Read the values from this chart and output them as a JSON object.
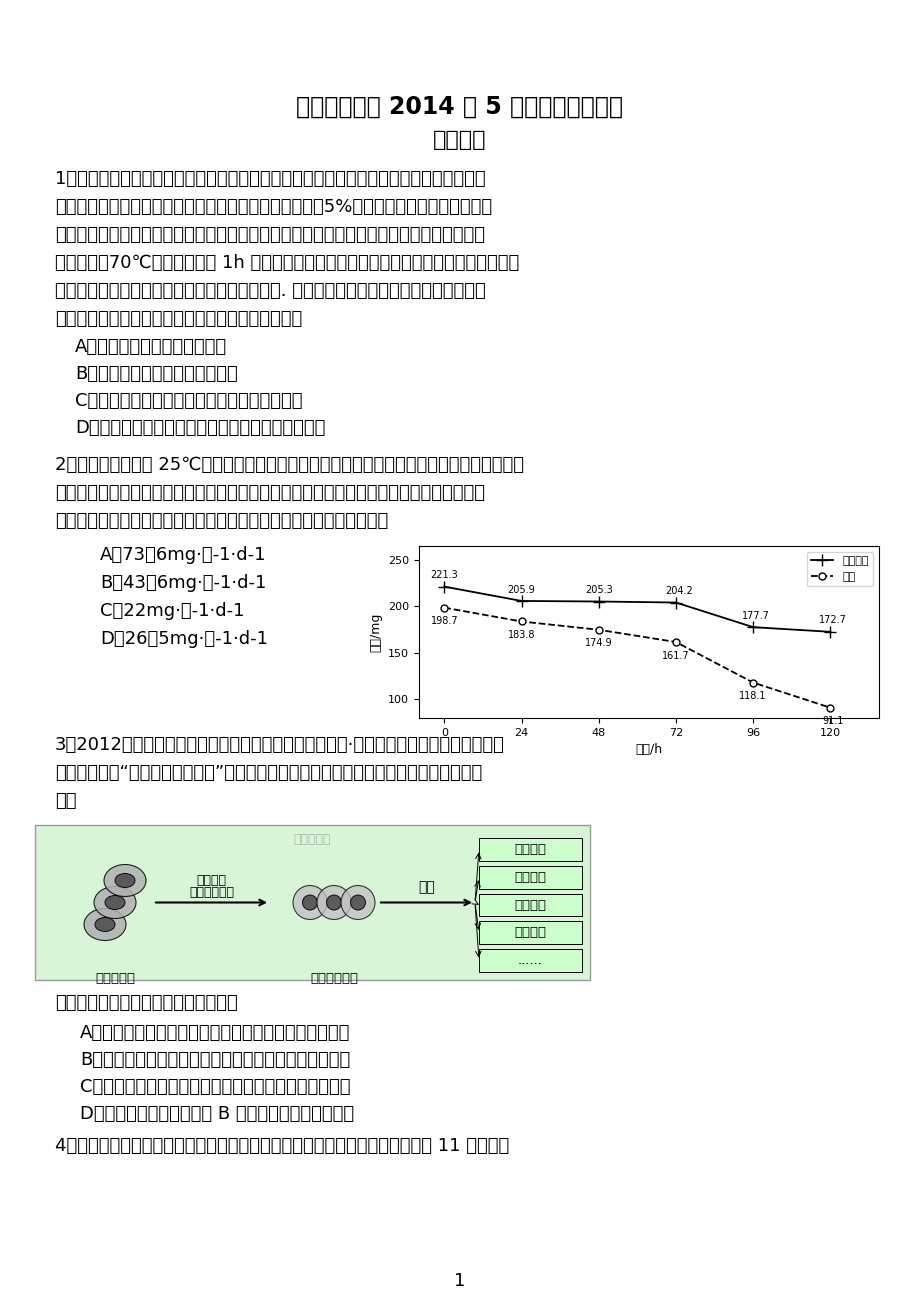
{
  "title": "福建泉港一中 2014 年 5 月高三考前围题卷",
  "subtitle": "生物试卷",
  "background_color": "#ffffff",
  "q1_lines": [
    "1．把带有叶子的枝条插在水中，放置于暗室里两天。用打孔器在取下的叶子上打圆孔。把",
    "所得的叶子圆片分为两等份，一份放在水中，另一份放入5%的葡萄糖溶液中，并让叶片背",
    "面朝液面，漂浮在液面上，继续放置于暗室里两天，然后把这些叶片放入温水中几分钟后取",
    "出，再放入70℃的酒精中浸泡 1h 以上。取出叶片放入水中漂洗，再浸入稀磖液中几秒钟后",
    "取出，用蒸馏水洗去磖液，观察叶片颜色的变化. 浮在水面上的叶片呈白色或浅黄色，而浮",
    "在葡萄糖溶液面上的叶片呈蓝色。推断其原因可能是"
  ],
  "q1_options": [
    "A．实验前，叶子已储藏了淠粉",
    "B．实验前，叶子已储藏了葡萄糖",
    "C．实验前，叶子已进行了光合作用产生了淠粉",
    "D．实验时，叶片吸收了葡萄糖，并使之转变为淠粉"
  ],
  "q2_lines": [
    "2．将玉米种子置于 25℃、黑暗、水分适宜的条件下萌发，每天定时取相同数量的萌发种子，",
    "一半直接烘干称重，另一半切取胚乳烘干称重，计算每粒的平均干重，结果如图所示。萌发",
    "过程中胚乳的部分营养物质转化成幼苗的组成物质，其最大转化速率为"
  ],
  "q2_options": [
    "A．73．6mg·粒-1·d-1",
    "B．43．6mg·粒-1·d-1",
    "C．22mg·粒-1·d-1",
    "D．26．5mg·粒-1·d-1"
  ],
  "chart_x": [
    0,
    24,
    48,
    72,
    96,
    120
  ],
  "chart_seed": [
    221.3,
    205.9,
    205.3,
    204.2,
    177.7,
    172.7
  ],
  "chart_endosperm": [
    198.7,
    183.8,
    174.9,
    161.7,
    118.1,
    91.1
  ],
  "chart_seed_label": "萌发种子",
  "chart_endosperm_label": "胚乳",
  "chart_ylabel": "干重/mg",
  "chart_xlabel": "时间/h",
  "q3_lines": [
    "3．2012年诺贝尔生理学或医学奖被授予英国科学家约翰·格登和日本医学教授山中伸弥，",
    "以表彰他们在“细胞核重编程技术”领域做出的革命性贡献。下图为该技术的操作流程模式",
    "图。"
  ],
  "q3_adult_cell": "成年体细胞",
  "q3_induction": "人工评导",
  "q3_reprogramming": "细胞核重编程",
  "q3_stem_cell": "多功能干细胞",
  "q3_differentiate": "分化",
  "q3_watermark": "高考资源网",
  "q3_target_cells": [
    "表皮细胞",
    "心肌细胞",
    "胰岛细胞",
    "神经细胞",
    "......"
  ],
  "q3_question": "据图推断，以下说法正确的是（　　）",
  "q3_options": [
    "A．干细胞的叶綠体、线粒体、细胞核均具有双层膜结构",
    "B．干细胞分化形成的表皮细胞中染色体数目发生了变化",
    "C．干细胞分化形成各种类型的细胞体现了细胞的全能性",
    "D．干细胞用于治疗因胰岛 B 细胞受损而引起的糖尿病"
  ],
  "q4_text": "4．四倍体西瓜是用秋水仙素处理二倍体西瓜幼苗形成的，其每个染色体组含有 11 条染色体",
  "page_number": "1"
}
